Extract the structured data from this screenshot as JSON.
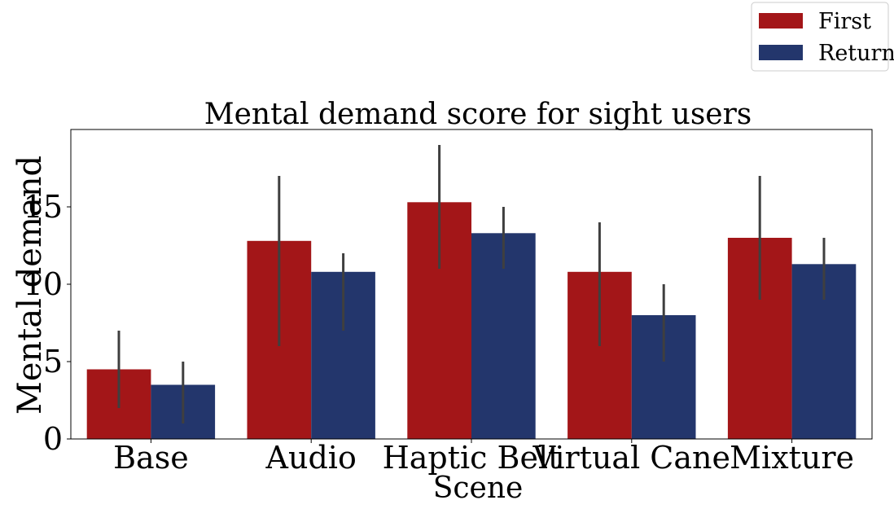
{
  "colors": {
    "first": "#a31618",
    "return": "#23366c",
    "error_bar": "#3f3f3f",
    "axis": "#000000",
    "legend_border": "#cccccc"
  },
  "chart_data": {
    "type": "bar",
    "title": "Mental demand score for sight users",
    "xlabel": "Scene",
    "ylabel": "Mental demand",
    "categories": [
      "Base",
      "Audio",
      "Haptic Belt",
      "Virtual Cane",
      "Mixture"
    ],
    "yticks": [
      "0",
      "5",
      "10",
      "15"
    ],
    "ylim": [
      0,
      20
    ],
    "grid": false,
    "legend_position": "top-right, outside above the plot",
    "series": [
      {
        "name": "First",
        "color": "#a31618",
        "values": [
          4.5,
          12.8,
          15.3,
          10.8,
          13.0
        ],
        "error_low": [
          2.0,
          6.0,
          11.0,
          6.0,
          9.0
        ],
        "error_high": [
          7.0,
          17.0,
          19.0,
          14.0,
          17.0
        ]
      },
      {
        "name": "Return",
        "color": "#23366c",
        "values": [
          3.5,
          10.8,
          13.3,
          8.0,
          11.3
        ],
        "error_low": [
          1.0,
          7.0,
          11.0,
          5.0,
          9.0
        ],
        "error_high": [
          5.0,
          12.0,
          15.0,
          10.0,
          13.0
        ]
      }
    ]
  }
}
